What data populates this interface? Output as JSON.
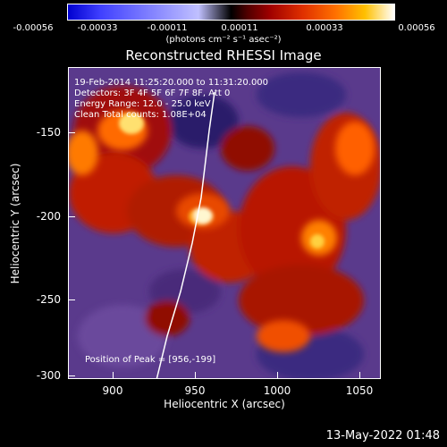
{
  "colorbar": {
    "ticks": [
      "-0.00056",
      "-0.00033",
      "-0.00011",
      "0.00011",
      "0.00033",
      "0.00056"
    ],
    "unit": "(photons cm⁻² s⁻¹ asec⁻²)"
  },
  "image": {
    "title": "Reconstructed RHESSI Image",
    "time_range": "19-Feb-2014 11:25:20.000 to 11:31:20.000",
    "detectors": "Detectors: 3F 4F 5F 6F 7F 8F, Att 0",
    "energy": "Energy Range: 12.0 - 25.0 keV",
    "algorithm": "Clean    Total counts: 1.08E+04",
    "peak": "Position of Peak = [956,-199]"
  },
  "axes": {
    "xlabel": "Heliocentric X (arcsec)",
    "ylabel": "Heliocentric Y (arcsec)",
    "x_ticks": [
      "900",
      "950",
      "1000",
      "1050"
    ],
    "y_ticks": [
      "-150",
      "-200",
      "-250",
      "-300"
    ],
    "x_range": [
      872,
      1065
    ],
    "y_range": [
      -303,
      -111
    ]
  },
  "timestamp": "13-May-2022 01:48"
}
